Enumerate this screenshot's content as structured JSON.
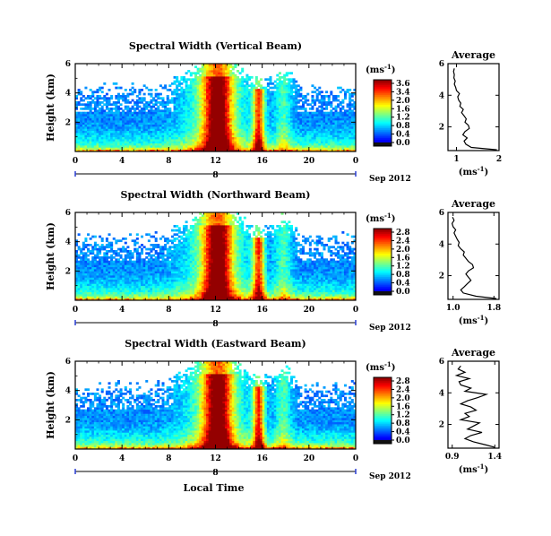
{
  "chart_data": [
    {
      "type": "heatmap",
      "title": "Spectral Width (Vertical Beam)",
      "ylabel": "Height (km)",
      "xlabel": "",
      "x_ticks": [
        "0",
        "4",
        "8",
        "12",
        "16",
        "20",
        "0"
      ],
      "y_ticks": [
        "6",
        "4",
        "2"
      ],
      "xlim": [
        0,
        24
      ],
      "ylim": [
        0,
        6
      ],
      "date_tick": "8",
      "date_label": "Sep 2012",
      "colorbar": {
        "unit": "(ms",
        "unit_exp": "-1",
        "unit_close": ")",
        "ticks": [
          "3.6",
          "3.4",
          "2.0",
          "1.6",
          "1.2",
          "0.8",
          "0.4",
          "0.0"
        ],
        "range": [
          0,
          3.6
        ]
      },
      "profile": {
        "title": "Average",
        "xlabel": "(ms",
        "xlabel_exp": "-1",
        "xlabel_close": ")",
        "x_ticks": [
          "1",
          "2"
        ],
        "y_ticks": [
          "6",
          "4",
          "2"
        ],
        "xlim": [
          0.8,
          2.0
        ],
        "ylim": [
          0.5,
          6
        ],
        "height_km": [
          0.55,
          0.7,
          0.9,
          1.1,
          1.3,
          1.5,
          1.7,
          1.9,
          2.1,
          2.3,
          2.5,
          2.7,
          2.9,
          3.1,
          3.3,
          3.5,
          3.7,
          3.9,
          4.1,
          4.3,
          4.5,
          4.7,
          4.9,
          5.1,
          5.3,
          5.5,
          5.7
        ],
        "width_ms": [
          1.95,
          1.35,
          1.22,
          1.18,
          1.25,
          1.15,
          1.2,
          1.3,
          1.28,
          1.2,
          1.23,
          1.18,
          1.12,
          1.16,
          1.08,
          1.1,
          1.05,
          1.03,
          1.07,
          1.0,
          0.98,
          0.95,
          0.97,
          0.94,
          0.95,
          0.93,
          0.95
        ]
      }
    },
    {
      "type": "heatmap",
      "title": "Spectral Width (Northward Beam)",
      "ylabel": "Height (km)",
      "xlabel": "",
      "x_ticks": [
        "0",
        "4",
        "8",
        "12",
        "16",
        "20",
        "0"
      ],
      "y_ticks": [
        "6",
        "4",
        "2"
      ],
      "xlim": [
        0,
        24
      ],
      "ylim": [
        0,
        6
      ],
      "date_tick": "8",
      "date_label": "Sep 2012",
      "colorbar": {
        "unit": "(ms",
        "unit_exp": "-1",
        "unit_close": ")",
        "ticks": [
          "2.8",
          "2.4",
          "2.0",
          "1.6",
          "1.2",
          "0.8",
          "0.4",
          "0.0"
        ],
        "range": [
          0,
          2.8
        ]
      },
      "profile": {
        "title": "Average",
        "xlabel": "(ms",
        "xlabel_exp": "-1",
        "xlabel_close": ")",
        "x_ticks": [
          "1.0",
          "1.8"
        ],
        "y_ticks": [
          "6",
          "4",
          "2"
        ],
        "xlim": [
          0.9,
          1.9
        ],
        "ylim": [
          0.5,
          6
        ],
        "height_km": [
          0.55,
          0.7,
          0.9,
          1.1,
          1.3,
          1.5,
          1.7,
          1.9,
          2.1,
          2.3,
          2.5,
          2.7,
          2.9,
          3.1,
          3.3,
          3.5,
          3.7,
          3.9,
          4.1,
          4.3,
          4.5,
          4.7,
          4.9,
          5.1,
          5.3,
          5.5,
          5.7
        ],
        "width_ms": [
          1.85,
          1.45,
          1.2,
          1.15,
          1.22,
          1.28,
          1.35,
          1.3,
          1.25,
          1.3,
          1.4,
          1.38,
          1.3,
          1.25,
          1.2,
          1.22,
          1.15,
          1.1,
          1.12,
          1.08,
          1.05,
          1.02,
          1.05,
          1.0,
          0.98,
          1.02,
          0.99
        ]
      }
    },
    {
      "type": "heatmap",
      "title": "Spectral Width (Eastward Beam)",
      "ylabel": "Height (km)",
      "xlabel": "Local Time",
      "x_ticks": [
        "0",
        "4",
        "8",
        "12",
        "16",
        "20",
        "0"
      ],
      "y_ticks": [
        "6",
        "4",
        "2"
      ],
      "xlim": [
        0,
        24
      ],
      "ylim": [
        0,
        6
      ],
      "date_tick": "8",
      "date_label": "Sep 2012",
      "colorbar": {
        "unit": "(ms",
        "unit_exp": "-1",
        "unit_close": ")",
        "ticks": [
          "2.8",
          "2.4",
          "2.0",
          "1.6",
          "1.2",
          "0.8",
          "0.4",
          "0.0"
        ],
        "range": [
          0,
          2.8
        ]
      },
      "profile": {
        "title": "Average",
        "xlabel": "(ms",
        "xlabel_exp": "-1",
        "xlabel_close": ")",
        "x_ticks": [
          "0.9",
          "1.4"
        ],
        "y_ticks": [
          "6",
          "4",
          "2"
        ],
        "xlim": [
          0.85,
          1.45
        ],
        "ylim": [
          0.5,
          6
        ],
        "height_km": [
          0.55,
          0.7,
          0.9,
          1.1,
          1.3,
          1.5,
          1.7,
          1.9,
          2.1,
          2.3,
          2.5,
          2.7,
          2.9,
          3.1,
          3.3,
          3.5,
          3.7,
          3.9,
          4.1,
          4.3,
          4.5,
          4.7,
          4.9,
          5.1,
          5.3,
          5.5,
          5.7
        ],
        "width_ms": [
          1.4,
          1.3,
          1.15,
          1.05,
          1.12,
          1.25,
          1.08,
          1.15,
          1.22,
          1.0,
          1.1,
          1.05,
          1.18,
          1.12,
          1.0,
          1.08,
          1.2,
          1.3,
          1.05,
          1.12,
          1.0,
          0.98,
          1.1,
          0.95,
          1.05,
          0.97,
          1.0
        ]
      }
    }
  ]
}
